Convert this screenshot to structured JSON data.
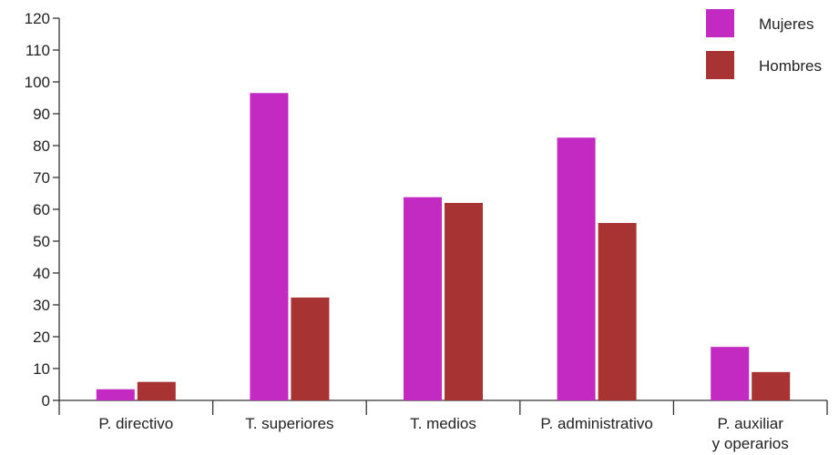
{
  "chart_data": {
    "type": "bar",
    "categories": [
      [
        "P. directivo"
      ],
      [
        "T. superiores"
      ],
      [
        "T. medios"
      ],
      [
        "P. administrativo"
      ],
      [
        "P. auxiliar",
        "y operarios"
      ]
    ],
    "series": [
      {
        "name": "Mujeres",
        "color": "#c22ac2",
        "values": [
          3.5,
          96.5,
          63.8,
          82.5,
          16.8
        ]
      },
      {
        "name": "Hombres",
        "color": "#a83333",
        "values": [
          5.8,
          32.3,
          62.0,
          55.7,
          8.9
        ]
      }
    ],
    "ylim": [
      0,
      120
    ],
    "yticks": [
      "0",
      "10",
      "20",
      "30",
      "40",
      "50",
      "60",
      "70",
      "80",
      "90",
      "100",
      "110",
      "120"
    ],
    "legend_position": "top-right",
    "grid": false
  }
}
